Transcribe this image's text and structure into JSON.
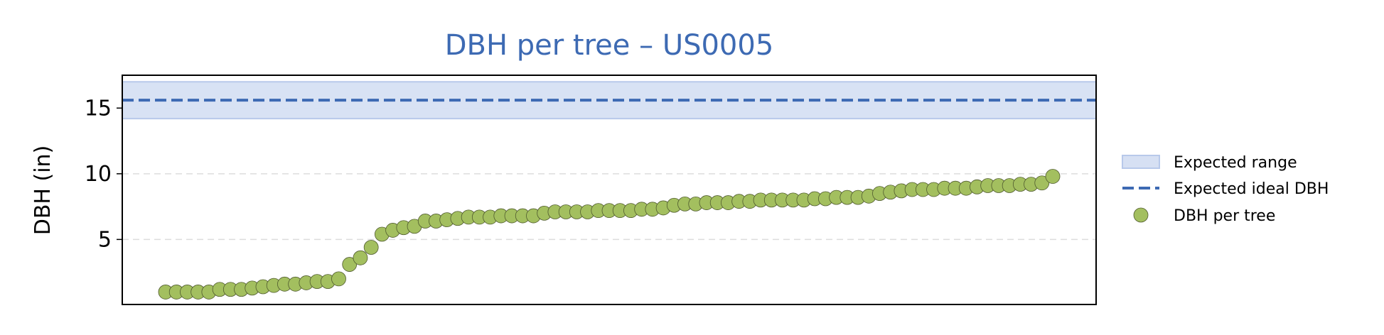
{
  "chart_data": {
    "type": "scatter",
    "title": "DBH per tree – US0005",
    "xlabel": "",
    "ylabel": "DBH (in)",
    "ylim": [
      0.05,
      17.5
    ],
    "yticks": [
      5,
      10,
      15
    ],
    "grid": "y-dashed",
    "legend_placement": "right",
    "expected_range": [
      14.2,
      17.0
    ],
    "expected_ideal": 15.6,
    "legend": {
      "range_label": "Expected range",
      "ideal_label": "Expected ideal DBH",
      "points_label": "DBH per tree"
    },
    "colors": {
      "title": "#3d6ab3",
      "range_fill": "#d6e0f3",
      "range_edge": "#b8c9ea",
      "ideal_line": "#3d6ab3",
      "points": "#a3bf5f",
      "points_edge": "#4f5a2e",
      "grid": "#dddddd"
    },
    "series": [
      {
        "name": "DBH per tree",
        "values": [
          1.0,
          1.0,
          1.0,
          1.0,
          1.0,
          1.2,
          1.2,
          1.2,
          1.3,
          1.4,
          1.5,
          1.6,
          1.6,
          1.7,
          1.8,
          1.8,
          2.0,
          3.1,
          3.6,
          4.4,
          5.4,
          5.7,
          5.9,
          6.0,
          6.4,
          6.4,
          6.5,
          6.6,
          6.7,
          6.7,
          6.7,
          6.8,
          6.8,
          6.8,
          6.8,
          7.0,
          7.1,
          7.1,
          7.1,
          7.1,
          7.2,
          7.2,
          7.2,
          7.2,
          7.3,
          7.3,
          7.4,
          7.6,
          7.7,
          7.7,
          7.8,
          7.8,
          7.8,
          7.9,
          7.9,
          8.0,
          8.0,
          8.0,
          8.0,
          8.0,
          8.1,
          8.1,
          8.2,
          8.2,
          8.2,
          8.3,
          8.5,
          8.6,
          8.7,
          8.8,
          8.8,
          8.8,
          8.9,
          8.9,
          8.9,
          9.0,
          9.1,
          9.1,
          9.1,
          9.2,
          9.2,
          9.3,
          9.8
        ]
      }
    ]
  }
}
